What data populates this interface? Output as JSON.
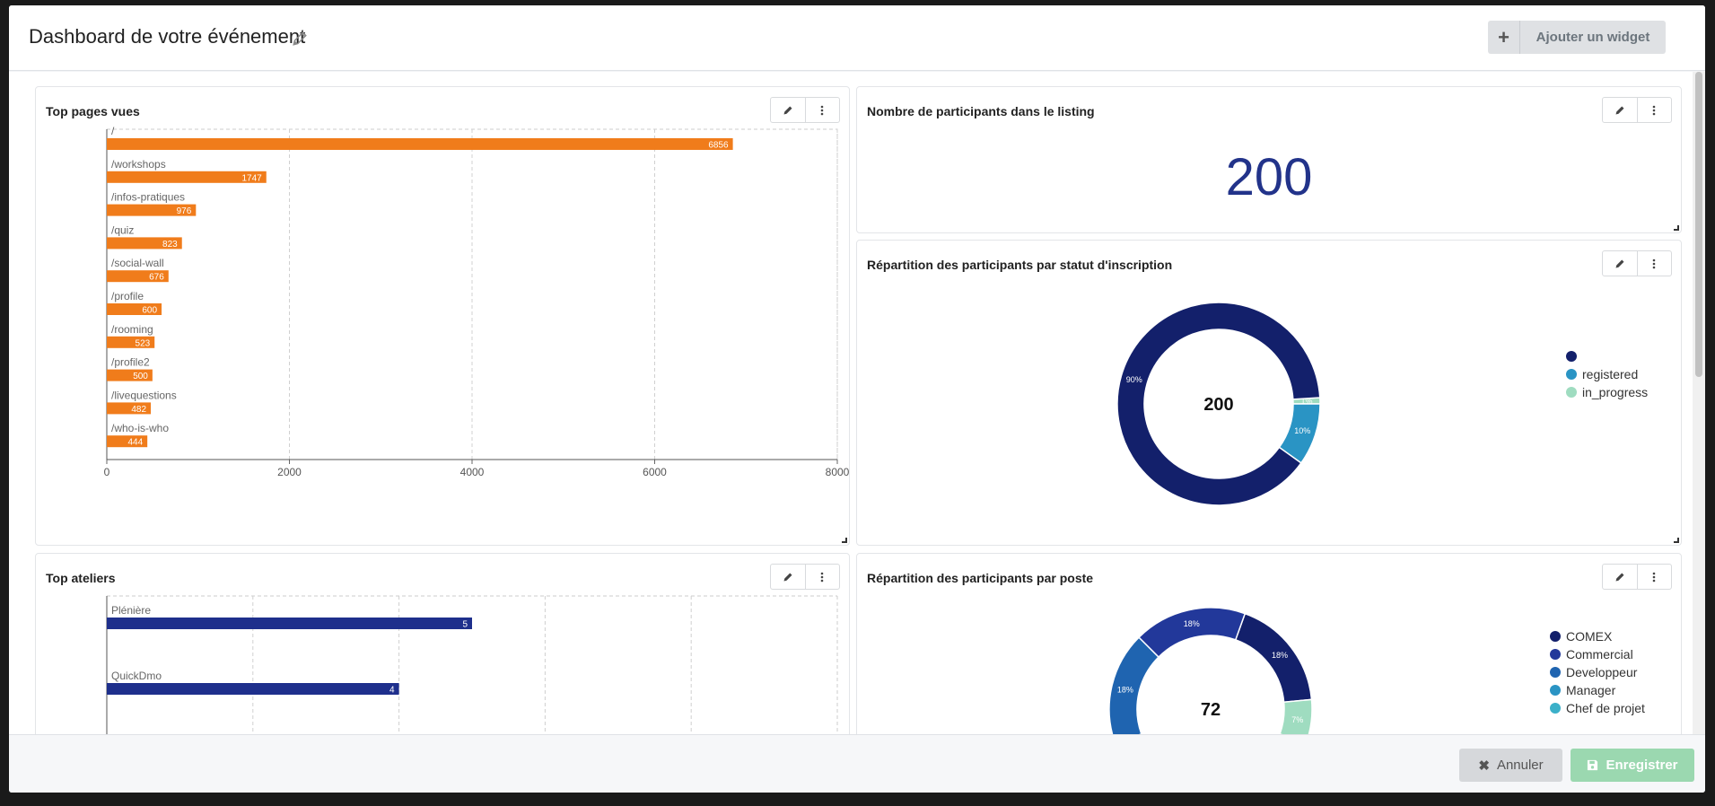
{
  "header": {
    "title": "Dashboard de votre événement",
    "add_widget_label": "Ajouter un widget"
  },
  "footer": {
    "cancel_label": "Annuler",
    "save_label": "Enregistrer"
  },
  "widgets": {
    "top_pages": {
      "title": "Top pages vues",
      "chart_data": {
        "type": "bar",
        "orientation": "horizontal",
        "categories": [
          "/",
          "/workshops",
          "/infos-pratiques",
          "/quiz",
          "/social-wall",
          "/profile",
          "/rooming",
          "/profile2",
          "/livequestions",
          "/who-is-who"
        ],
        "values": [
          6856,
          1747,
          976,
          823,
          676,
          600,
          523,
          500,
          482,
          444
        ],
        "xlim": [
          0,
          8000
        ],
        "xticks": [
          0,
          2000,
          4000,
          6000,
          8000
        ],
        "color": "#f07c1b",
        "grid": true
      }
    },
    "participants_count": {
      "title": "Nombre de participants dans le listing",
      "value": "200"
    },
    "status_split": {
      "title": "Répartition des participants par statut d'inscription",
      "center_label": "200",
      "chart_data": {
        "type": "pie",
        "variant": "donut",
        "labels": [
          "",
          "registered",
          "in_progress"
        ],
        "values": [
          90,
          10,
          1
        ],
        "slice_labels": [
          "90%",
          "10%",
          "1%"
        ],
        "colors": [
          "#13206b",
          "#2a94c4",
          "#9fdcc0"
        ],
        "legend": "right"
      }
    },
    "top_workshops": {
      "title": "Top ateliers",
      "chart_data": {
        "type": "bar",
        "orientation": "horizontal",
        "categories": [
          "Plénière",
          "QuickDmo"
        ],
        "values": [
          5,
          4
        ],
        "color": "#1e2f8c",
        "grid": true
      }
    },
    "position_split": {
      "title": "Répartition des participants par poste",
      "center_label": "72",
      "chart_data": {
        "type": "pie",
        "variant": "donut",
        "labels": [
          "COMEX",
          "Commercial",
          "Developpeur",
          "Manager",
          "Chef de projet"
        ],
        "visible_slice_labels": [
          "18%",
          "18%",
          "18%",
          "7%"
        ],
        "colors": [
          "#13206b",
          "#22389a",
          "#1f64b0",
          "#2a94c4",
          "#3bb0c9",
          "#9fdcc0"
        ],
        "legend": "right"
      }
    }
  }
}
